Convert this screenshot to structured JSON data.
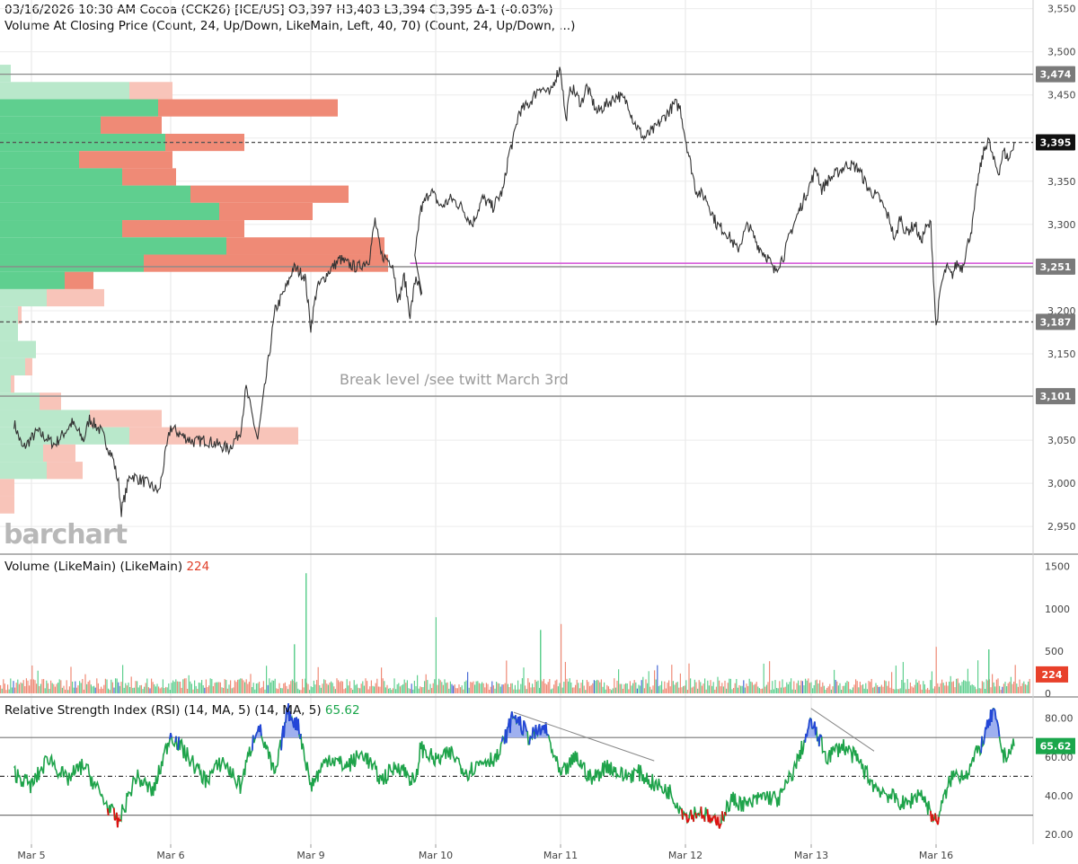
{
  "header": {
    "line1": "03/16/2026  10:30 AM  Cocoa (CCK26) [ICE/US]  O3,397  H3,403  L3,394  C3,395  Δ-1 (-0.03%)",
    "line2": "Volume At Closing Price (Count, 24, Up/Down, LikeMain, Left, 40, 70)  (Count, 24, Up/Down, ...)"
  },
  "watermark": "barchart",
  "annotation": "Break level /see twitt March 3rd",
  "volume_panel": {
    "title": "Volume (LikeMain)  (LikeMain)",
    "value": "224"
  },
  "rsi_panel": {
    "title": "Relative Strength Index (RSI) (14, MA, 5)  (14, MA, 5)",
    "value": "65.62"
  },
  "colors": {
    "up": "#5fcf8f",
    "down": "#ef8a76",
    "up_light": "#b9e8cb",
    "down_light": "#f8c4b9",
    "price_line": "#333333",
    "rsi_line": "#1ea34a",
    "rsi_over": "#2446d8",
    "rsi_under": "#e01010",
    "magenta": "#d24fd6",
    "last_badge": "#111111",
    "rsi_badge": "#1aa64b",
    "vol_badge": "#e8402a"
  },
  "chart_data": [
    {
      "type": "line",
      "title": "Cocoa (CCK26) [ICE/US]",
      "x_ticks": [
        "Mar 5",
        "Mar 6",
        "Mar 9",
        "Mar 10",
        "Mar 11",
        "Mar 12",
        "Mar 13",
        "Mar 16"
      ],
      "y_ticks": [
        "3,550",
        "3,500",
        "3,450",
        "3,400",
        "3,350",
        "3,300",
        "3,250",
        "3,200",
        "3,150",
        "3,100",
        "3,050",
        "3,000",
        "2,950"
      ],
      "ylim": [
        2920,
        3560
      ],
      "price_path": [
        [
          "Mar 4 21:00",
          3070
        ],
        [
          "Mar 4 22:30",
          3040
        ],
        [
          "Mar 5 01:00",
          3060
        ],
        [
          "Mar 5 04:00",
          3045
        ],
        [
          "Mar 5 07:00",
          3070
        ],
        [
          "Mar 5 09:00",
          3050
        ],
        [
          "Mar 5 10:00",
          3075
        ],
        [
          "Mar 5 12:00",
          3060
        ],
        [
          "Mar 5 14:00",
          3030
        ],
        [
          "Mar 5 15:00",
          3000
        ],
        [
          "Mar 5 15:30",
          2968
        ],
        [
          "Mar 5 17:00",
          3010
        ],
        [
          "Mar 5 20:00",
          3000
        ],
        [
          "Mar 5 22:00",
          2990
        ],
        [
          "Mar 5 23:00",
          3030
        ],
        [
          "Mar 6 00:00",
          3065
        ],
        [
          "Mar 6 02:00",
          3055
        ],
        [
          "Mar 6 04:00",
          3048
        ],
        [
          "Mar 6 06:00",
          3050
        ],
        [
          "Mar 6 08:00",
          3045
        ],
        [
          "Mar 6 10:00",
          3040
        ],
        [
          "Mar 6 12:00",
          3060
        ],
        [
          "Mar 6 13:00",
          3110
        ],
        [
          "Mar 6 14:00",
          3080
        ],
        [
          "Mar 6 15:00",
          3050
        ],
        [
          "Mar 6 16:00",
          3100
        ],
        [
          "Mar 6 17:00",
          3150
        ],
        [
          "Mar 6 18:00",
          3200
        ],
        [
          "Mar 6 20:00",
          3230
        ],
        [
          "Mar 6 21:00",
          3250
        ],
        [
          "Mar 6 23:00",
          3240
        ],
        [
          "Mar 9 00:00",
          3180
        ],
        [
          "Mar 9 01:00",
          3225
        ],
        [
          "Mar 9 03:00",
          3245
        ],
        [
          "Mar 9 05:00",
          3260
        ],
        [
          "Mar 9 06:00",
          3255
        ],
        [
          "Mar 9 08:00",
          3250
        ],
        [
          "Mar 9 10:00",
          3260
        ],
        [
          "Mar 9 11:00",
          3305
        ],
        [
          "Mar 9 12:00",
          3265
        ],
        [
          "Mar 9 14:00",
          3255
        ],
        [
          "Mar 9 15:00",
          3210
        ],
        [
          "Mar 9 16:00",
          3240
        ],
        [
          "Mar 9 17:00",
          3195
        ],
        [
          "Mar 9 18:00",
          3240
        ],
        [
          "Mar 9 19:00",
          3215
        ],
        [
          "Mar 9 20:00",
          3260
        ],
        [
          "Mar 9 21:00",
          3315
        ],
        [
          "Mar 9 23:00",
          3340
        ],
        [
          "Mar 10 01:00",
          3320
        ],
        [
          "Mar 10 03:00",
          3330
        ],
        [
          "Mar 10 05:00",
          3320
        ],
        [
          "Mar 10 07:00",
          3300
        ],
        [
          "Mar 10 09:00",
          3330
        ],
        [
          "Mar 10 11:00",
          3320
        ],
        [
          "Mar 10 13:00",
          3340
        ],
        [
          "Mar 10 14:00",
          3380
        ],
        [
          "Mar 10 15:00",
          3400
        ],
        [
          "Mar 10 16:00",
          3430
        ],
        [
          "Mar 10 18:00",
          3440
        ],
        [
          "Mar 10 20:00",
          3460
        ],
        [
          "Mar 10 22:00",
          3450
        ],
        [
          "Mar 10 23:00",
          3470
        ],
        [
          "Mar 11 00:00",
          3482
        ],
        [
          "Mar 11 01:00",
          3420
        ],
        [
          "Mar 11 02:00",
          3460
        ],
        [
          "Mar 11 04:00",
          3440
        ],
        [
          "Mar 11 05:00",
          3460
        ],
        [
          "Mar 11 07:00",
          3430
        ],
        [
          "Mar 11 09:00",
          3440
        ],
        [
          "Mar 11 11:00",
          3450
        ],
        [
          "Mar 11 13:00",
          3440
        ],
        [
          "Mar 11 14:00",
          3420
        ],
        [
          "Mar 11 16:00",
          3400
        ],
        [
          "Mar 11 18:00",
          3410
        ],
        [
          "Mar 11 20:00",
          3425
        ],
        [
          "Mar 11 22:00",
          3440
        ],
        [
          "Mar 11 23:00",
          3435
        ],
        [
          "Mar 12 00:00",
          3400
        ],
        [
          "Mar 12 01:00",
          3370
        ],
        [
          "Mar 12 02:00",
          3340
        ],
        [
          "Mar 12 04:00",
          3330
        ],
        [
          "Mar 12 06:00",
          3300
        ],
        [
          "Mar 12 08:00",
          3290
        ],
        [
          "Mar 12 10:00",
          3270
        ],
        [
          "Mar 12 12:00",
          3300
        ],
        [
          "Mar 12 14:00",
          3275
        ],
        [
          "Mar 12 16:00",
          3260
        ],
        [
          "Mar 12 17:00",
          3245
        ],
        [
          "Mar 12 19:00",
          3265
        ],
        [
          "Mar 12 20:00",
          3290
        ],
        [
          "Mar 12 22:00",
          3320
        ],
        [
          "Mar 13 00:00",
          3350
        ],
        [
          "Mar 13 01:00",
          3365
        ],
        [
          "Mar 13 02:00",
          3340
        ],
        [
          "Mar 13 03:00",
          3350
        ],
        [
          "Mar 13 05:00",
          3360
        ],
        [
          "Mar 13 07:00",
          3370
        ],
        [
          "Mar 13 09:00",
          3365
        ],
        [
          "Mar 13 11:00",
          3340
        ],
        [
          "Mar 13 13:00",
          3330
        ],
        [
          "Mar 13 15:00",
          3305
        ],
        [
          "Mar 13 16:00",
          3280
        ],
        [
          "Mar 13 17:00",
          3310
        ],
        [
          "Mar 13 18:00",
          3290
        ],
        [
          "Mar 13 20:00",
          3300
        ],
        [
          "Mar 13 21:00",
          3280
        ],
        [
          "Mar 13 22:00",
          3295
        ],
        [
          "Mar 13 23:00",
          3300
        ],
        [
          "Mar 16 00:00",
          3180
        ],
        [
          "Mar 16 01:00",
          3230
        ],
        [
          "Mar 16 02:00",
          3250
        ],
        [
          "Mar 16 03:00",
          3240
        ],
        [
          "Mar 16 04:00",
          3255
        ],
        [
          "Mar 16 05:00",
          3250
        ],
        [
          "Mar 16 06:00",
          3275
        ],
        [
          "Mar 16 07:00",
          3300
        ],
        [
          "Mar 16 08:00",
          3350
        ],
        [
          "Mar 16 09:00",
          3380
        ],
        [
          "Mar 16 10:00",
          3400
        ],
        [
          "Mar 16 11:00",
          3375
        ],
        [
          "Mar 16 12:00",
          3360
        ],
        [
          "Mar 16 13:00",
          3385
        ],
        [
          "Mar 16 14:00",
          3375
        ],
        [
          "Mar 16 15:00",
          3395
        ]
      ],
      "levels": [
        {
          "label": "3,474",
          "value": 3474,
          "style": "solid",
          "badge": "gray"
        },
        {
          "label": "3,395",
          "value": 3395,
          "style": "dashed",
          "badge": "dark"
        },
        {
          "label": "3,251",
          "value": 3251,
          "style": "solid",
          "badge": "gray"
        },
        {
          "label": "3,187",
          "value": 3187,
          "style": "dashed",
          "badge": "gray"
        },
        {
          "label": "3,101",
          "value": 3101,
          "style": "solid",
          "badge": "gray"
        }
      ],
      "magenta_line": {
        "value": 3255,
        "from": "Mar 9 17:00"
      },
      "volume_profile": [
        {
          "price": 3475,
          "up": 3,
          "down": 0
        },
        {
          "price": 3455,
          "up": 36,
          "down": 12
        },
        {
          "price": 3435,
          "up": 44,
          "down": 50
        },
        {
          "price": 3415,
          "up": 28,
          "down": 17
        },
        {
          "price": 3395,
          "up": 46,
          "down": 22
        },
        {
          "price": 3375,
          "up": 22,
          "down": 26
        },
        {
          "price": 3355,
          "up": 34,
          "down": 15
        },
        {
          "price": 3335,
          "up": 53,
          "down": 44
        },
        {
          "price": 3315,
          "up": 61,
          "down": 26
        },
        {
          "price": 3295,
          "up": 34,
          "down": 34
        },
        {
          "price": 3275,
          "up": 63,
          "down": 44
        },
        {
          "price": 3255,
          "up": 40,
          "down": 68
        },
        {
          "price": 3235,
          "up": 18,
          "down": 8
        },
        {
          "price": 3215,
          "up": 13,
          "down": 16
        },
        {
          "price": 3195,
          "up": 5,
          "down": 1
        },
        {
          "price": 3175,
          "up": 5,
          "down": 0
        },
        {
          "price": 3155,
          "up": 10,
          "down": 0
        },
        {
          "price": 3135,
          "up": 7,
          "down": 2
        },
        {
          "price": 3115,
          "up": 3,
          "down": 1
        },
        {
          "price": 3095,
          "up": 11,
          "down": 6
        },
        {
          "price": 3075,
          "up": 25,
          "down": 20
        },
        {
          "price": 3055,
          "up": 36,
          "down": 47
        },
        {
          "price": 3035,
          "up": 12,
          "down": 9
        },
        {
          "price": 3015,
          "up": 13,
          "down": 10
        },
        {
          "price": 2995,
          "up": 0,
          "down": 4
        },
        {
          "price": 2975,
          "up": 0,
          "down": 4
        }
      ]
    },
    {
      "type": "bar",
      "title": "Volume (LikeMain)  (LikeMain)",
      "y_ticks": [
        "1500",
        "1000",
        "500",
        "0"
      ],
      "ylim": [
        0,
        1550
      ],
      "last_value": 224,
      "spikes": [
        {
          "time": "Mar 6 23:00",
          "value": 1420
        },
        {
          "time": "Mar 10 00:00",
          "value": 900
        },
        {
          "time": "Mar 11 00:00",
          "value": 820
        },
        {
          "time": "Mar 10 20:00",
          "value": 750
        },
        {
          "time": "Mar 6 21:00",
          "value": 580
        },
        {
          "time": "Mar 16 10:00",
          "value": 520
        },
        {
          "time": "Mar 16 00:00",
          "value": 550
        }
      ]
    },
    {
      "type": "line",
      "title": "Relative Strength Index (RSI) (14, MA, 5)  (14, MA, 5)",
      "y_ticks": [
        "80.00",
        "60.00",
        "40.00",
        "20.00"
      ],
      "ylim": [
        15,
        90
      ],
      "levels": [
        70,
        50,
        30
      ],
      "last_value": 65.62,
      "rsi_path": [
        [
          "Mar 4 21:00",
          52
        ],
        [
          "Mar 5 00:00",
          45
        ],
        [
          "Mar 5 03:00",
          60
        ],
        [
          "Mar 5 06:00",
          48
        ],
        [
          "Mar 5 09:00",
          56
        ],
        [
          "Mar 5 12:00",
          40
        ],
        [
          "Mar 5 15:00",
          26
        ],
        [
          "Mar 5 18:00",
          50
        ],
        [
          "Mar 5 21:00",
          42
        ],
        [
          "Mar 6 00:00",
          72
        ],
        [
          "Mar 6 03:00",
          60
        ],
        [
          "Mar 6 06:00",
          48
        ],
        [
          "Mar 6 09:00",
          58
        ],
        [
          "Mar 6 12:00",
          45
        ],
        [
          "Mar 6 15:00",
          77
        ],
        [
          "Mar 6 18:00",
          50
        ],
        [
          "Mar 6 20:00",
          84
        ],
        [
          "Mar 6 22:00",
          75
        ],
        [
          "Mar 9 00:00",
          45
        ],
        [
          "Mar 9 03:00",
          60
        ],
        [
          "Mar 9 06:00",
          55
        ],
        [
          "Mar 9 09:00",
          62
        ],
        [
          "Mar 9 12:00",
          48
        ],
        [
          "Mar 9 15:00",
          56
        ],
        [
          "Mar 9 18:00",
          46
        ],
        [
          "Mar 9 21:00",
          65
        ],
        [
          "Mar 10 00:00",
          58
        ],
        [
          "Mar 10 03:00",
          62
        ],
        [
          "Mar 10 06:00",
          52
        ],
        [
          "Mar 10 09:00",
          58
        ],
        [
          "Mar 10 12:00",
          60
        ],
        [
          "Mar 10 15:00",
          82
        ],
        [
          "Mar 10 18:00",
          70
        ],
        [
          "Mar 10 21:00",
          75
        ],
        [
          "Mar 11 00:00",
          50
        ],
        [
          "Mar 11 03:00",
          60
        ],
        [
          "Mar 11 06:00",
          48
        ],
        [
          "Mar 11 09:00",
          56
        ],
        [
          "Mar 11 12:00",
          50
        ],
        [
          "Mar 11 15:00",
          52
        ],
        [
          "Mar 11 18:00",
          46
        ],
        [
          "Mar 11 21:00",
          42
        ],
        [
          "Mar 12 00:00",
          30
        ],
        [
          "Mar 12 03:00",
          32
        ],
        [
          "Mar 12 06:00",
          25
        ],
        [
          "Mar 12 09:00",
          38
        ],
        [
          "Mar 12 12:00",
          35
        ],
        [
          "Mar 12 15:00",
          40
        ],
        [
          "Mar 12 18:00",
          38
        ],
        [
          "Mar 12 21:00",
          55
        ],
        [
          "Mar 13 00:00",
          78
        ],
        [
          "Mar 13 03:00",
          60
        ],
        [
          "Mar 13 06:00",
          66
        ],
        [
          "Mar 13 09:00",
          58
        ],
        [
          "Mar 13 12:00",
          45
        ],
        [
          "Mar 13 15:00",
          40
        ],
        [
          "Mar 13 18:00",
          35
        ],
        [
          "Mar 13 21:00",
          42
        ],
        [
          "Mar 16 00:00",
          26
        ],
        [
          "Mar 16 03:00",
          50
        ],
        [
          "Mar 16 06:00",
          52
        ],
        [
          "Mar 16 09:00",
          68
        ],
        [
          "Mar 16 11:00",
          84
        ],
        [
          "Mar 16 13:00",
          60
        ],
        [
          "Mar 16 15:00",
          65.6
        ]
      ],
      "trendlines": [
        {
          "from": [
            "Mar 10 15:00",
            83
          ],
          "to": [
            "Mar 11 18:00",
            58
          ]
        },
        {
          "from": [
            "Mar 13 00:00",
            85
          ],
          "to": [
            "Mar 13 12:00",
            63
          ]
        }
      ]
    }
  ]
}
